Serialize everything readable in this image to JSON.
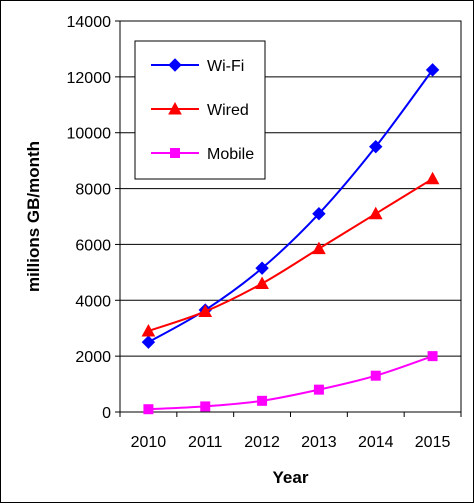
{
  "chart_data": {
    "type": "line",
    "title": "",
    "xlabel": "Year",
    "ylabel": "millions GB/month",
    "categories": [
      "2010",
      "2011",
      "2012",
      "2013",
      "2014",
      "2015"
    ],
    "ylim": [
      0,
      14000
    ],
    "yticks": [
      0,
      2000,
      4000,
      6000,
      8000,
      10000,
      12000,
      14000
    ],
    "grid": "horizontal",
    "legend_position": "top-left",
    "series": [
      {
        "name": "Wi-Fi",
        "color": "#0000ff",
        "marker": "diamond",
        "values": [
          2500,
          3650,
          5150,
          7100,
          9500,
          12250
        ]
      },
      {
        "name": "Wired",
        "color": "#ff0000",
        "marker": "triangle",
        "values": [
          2900,
          3600,
          4600,
          5850,
          7100,
          8350
        ]
      },
      {
        "name": "Mobile",
        "color": "#ff00ff",
        "marker": "square",
        "values": [
          100,
          200,
          400,
          800,
          1300,
          2000
        ]
      }
    ]
  }
}
